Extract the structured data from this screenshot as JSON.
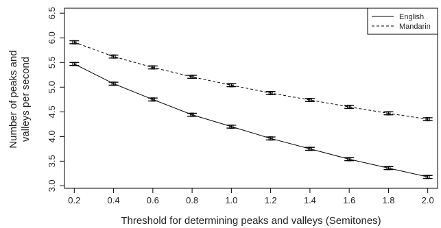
{
  "chart_data": {
    "type": "line",
    "xlabel": "Threshold for determining peaks and valleys (Semitones)",
    "ylabel_lines": [
      "Number of peaks and",
      "valleys per second"
    ],
    "x": [
      0.2,
      0.4,
      0.6,
      0.8,
      1.0,
      1.2,
      1.4,
      1.6,
      1.8,
      2.0
    ],
    "x_tick_labels": [
      "0.2",
      "0.4",
      "0.6",
      "0.8",
      "1.0",
      "1.2",
      "1.4",
      "1.6",
      "1.8",
      "2.0"
    ],
    "y_tick_labels": [
      "3.0",
      "3.5",
      "4.0",
      "4.5",
      "5.0",
      "5.5",
      "6.0",
      "6.5"
    ],
    "y_ticks": [
      3.0,
      3.5,
      4.0,
      4.5,
      5.0,
      5.5,
      6.0,
      6.5
    ],
    "xlim": [
      0.15,
      2.05
    ],
    "ylim": [
      2.95,
      6.6
    ],
    "grid": false,
    "legend_position": "top-right",
    "series": [
      {
        "name": "English",
        "style": "solid",
        "values": [
          5.47,
          5.07,
          4.75,
          4.44,
          4.2,
          3.96,
          3.75,
          3.54,
          3.36,
          3.18
        ],
        "error": [
          0.03,
          0.03,
          0.03,
          0.03,
          0.03,
          0.03,
          0.03,
          0.03,
          0.03,
          0.03
        ]
      },
      {
        "name": "Mandarin",
        "style": "dashed",
        "values": [
          5.91,
          5.62,
          5.4,
          5.21,
          5.04,
          4.88,
          4.74,
          4.6,
          4.47,
          4.35
        ],
        "error": [
          0.03,
          0.03,
          0.03,
          0.03,
          0.03,
          0.03,
          0.03,
          0.03,
          0.03,
          0.03
        ]
      }
    ]
  }
}
